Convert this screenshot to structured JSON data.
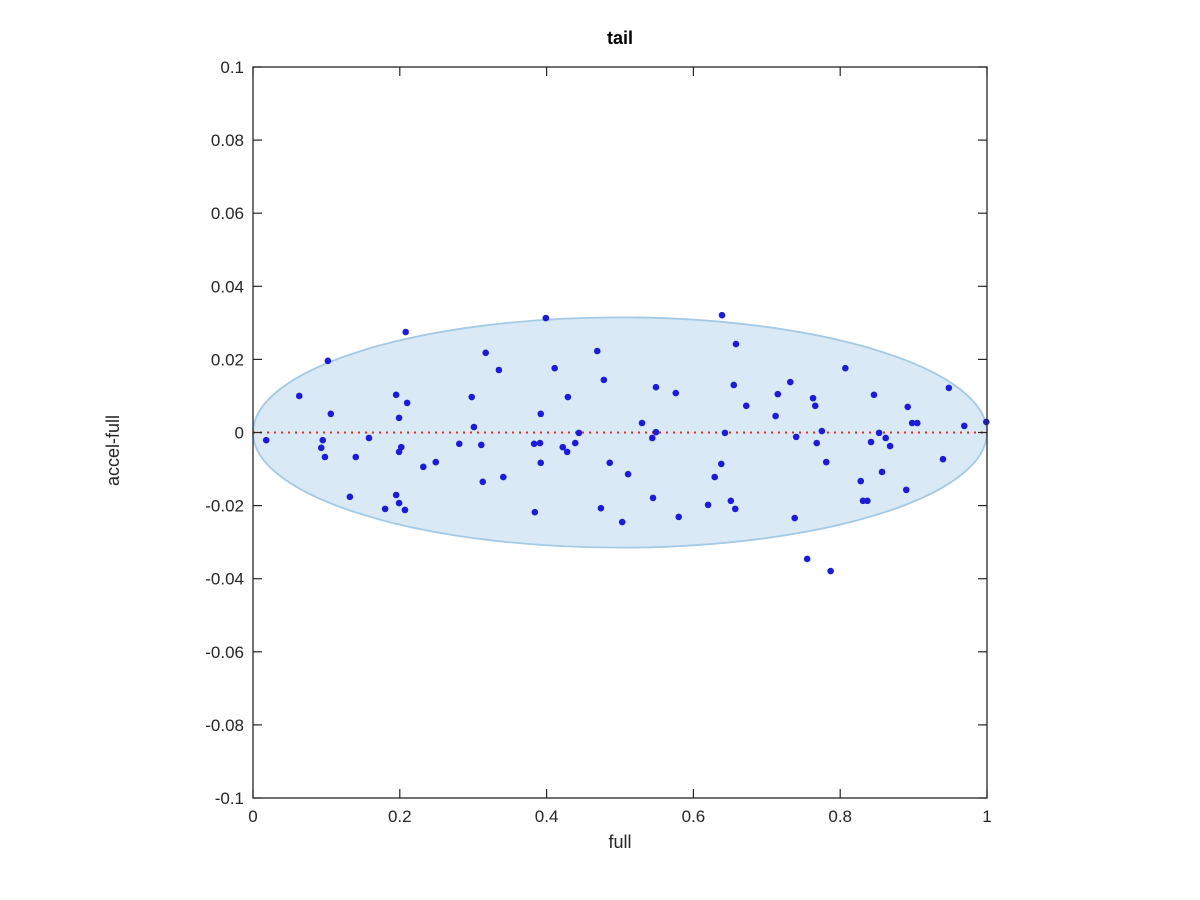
{
  "figure": {
    "window_background": "#ffffff",
    "axis_color": "#262626"
  },
  "chart_data": {
    "type": "scatter",
    "title": "tail",
    "xlabel": "full",
    "ylabel": "accel-full",
    "xlim": [
      0,
      1
    ],
    "ylim": [
      -0.1,
      0.1
    ],
    "grid": false,
    "legend": null,
    "xticks": {
      "values": [
        0,
        0.2,
        0.4,
        0.6,
        0.8,
        1
      ],
      "labels": [
        "0",
        "0.2",
        "0.4",
        "0.6",
        "0.8",
        "1"
      ]
    },
    "yticks": {
      "values": [
        -0.1,
        -0.08,
        -0.06,
        -0.04,
        -0.02,
        0,
        0.02,
        0.04,
        0.06,
        0.08,
        0.1
      ],
      "labels": [
        "-0.1",
        "-0.08",
        "-0.06",
        "-0.04",
        "-0.02",
        "0",
        "0.02",
        "0.04",
        "0.06",
        "0.08",
        "0.1"
      ]
    },
    "marker": {
      "shape": "point",
      "color": "#1b1bd8",
      "radius_px": 3.3
    },
    "ellipse": {
      "cx": 0.5,
      "cy": 0,
      "rx": 0.5,
      "ry": 0.0315,
      "fill": "#d9e9f5",
      "stroke": "#a5cae5"
    },
    "zero_line": {
      "y": 0,
      "style": "dotted",
      "color": "#e8291c"
    },
    "points": [
      [
        0.208,
        0.0275
      ],
      [
        0.102,
        0.0196
      ],
      [
        0.317,
        0.0218
      ],
      [
        0.335,
        0.0171
      ],
      [
        0.063,
        0.01
      ],
      [
        0.195,
        0.0103
      ],
      [
        0.21,
        0.0081
      ],
      [
        0.298,
        0.0097
      ],
      [
        0.106,
        0.0051
      ],
      [
        0.199,
        0.004
      ],
      [
        0.301,
        0.0015
      ],
      [
        0.158,
        -0.0015
      ],
      [
        0.399,
        0.0313
      ],
      [
        0.639,
        0.0321
      ],
      [
        0.658,
        0.0242
      ],
      [
        0.469,
        0.0223
      ],
      [
        0.411,
        0.0176
      ],
      [
        0.478,
        0.0144
      ],
      [
        0.549,
        0.0124
      ],
      [
        0.576,
        0.0108
      ],
      [
        0.655,
        0.013
      ],
      [
        0.672,
        0.0073
      ],
      [
        0.429,
        0.0097
      ],
      [
        0.392,
        0.0051
      ],
      [
        0.53,
        0.0026
      ],
      [
        0.444,
        -0.0001
      ],
      [
        0.549,
        0.0001
      ],
      [
        0.544,
        -0.0015
      ],
      [
        0.643,
        -0.0001
      ],
      [
        0.807,
        0.0176
      ],
      [
        0.732,
        0.0138
      ],
      [
        0.715,
        0.0105
      ],
      [
        0.763,
        0.0094
      ],
      [
        0.766,
        0.0073
      ],
      [
        0.846,
        0.0103
      ],
      [
        0.948,
        0.0122
      ],
      [
        0.892,
        0.007
      ],
      [
        0.712,
        0.0045
      ],
      [
        0.898,
        0.0026
      ],
      [
        0.905,
        0.0026
      ],
      [
        0.969,
        0.0018
      ],
      [
        0.999,
        0.0029
      ],
      [
        0.74,
        -0.0012
      ],
      [
        0.775,
        0.0004
      ],
      [
        0.853,
        -0.0001
      ],
      [
        0.862,
        -0.0015
      ],
      [
        0.018,
        -0.0021
      ],
      [
        0.095,
        -0.0021
      ],
      [
        0.093,
        -0.0042
      ],
      [
        0.098,
        -0.0067
      ],
      [
        0.14,
        -0.0067
      ],
      [
        0.202,
        -0.004
      ],
      [
        0.199,
        -0.0053
      ],
      [
        0.281,
        -0.0031
      ],
      [
        0.311,
        -0.0034
      ],
      [
        0.249,
        -0.0081
      ],
      [
        0.232,
        -0.0094
      ],
      [
        0.313,
        -0.0135
      ],
      [
        0.132,
        -0.0176
      ],
      [
        0.195,
        -0.0171
      ],
      [
        0.199,
        -0.0193
      ],
      [
        0.18,
        -0.0209
      ],
      [
        0.207,
        -0.0212
      ],
      [
        0.383,
        -0.0031
      ],
      [
        0.391,
        -0.0029
      ],
      [
        0.439,
        -0.0029
      ],
      [
        0.422,
        -0.004
      ],
      [
        0.428,
        -0.0053
      ],
      [
        0.392,
        -0.0083
      ],
      [
        0.486,
        -0.0083
      ],
      [
        0.511,
        -0.0114
      ],
      [
        0.341,
        -0.0122
      ],
      [
        0.638,
        -0.0086
      ],
      [
        0.629,
        -0.0122
      ],
      [
        0.545,
        -0.0179
      ],
      [
        0.651,
        -0.0187
      ],
      [
        0.657,
        -0.0209
      ],
      [
        0.474,
        -0.0207
      ],
      [
        0.384,
        -0.0218
      ],
      [
        0.503,
        -0.0245
      ],
      [
        0.58,
        -0.0231
      ],
      [
        0.62,
        -0.0198
      ],
      [
        0.768,
        -0.0029
      ],
      [
        0.842,
        -0.0026
      ],
      [
        0.868,
        -0.0037
      ],
      [
        0.781,
        -0.0081
      ],
      [
        0.94,
        -0.0073
      ],
      [
        0.857,
        -0.0108
      ],
      [
        0.828,
        -0.0133
      ],
      [
        0.89,
        -0.0157
      ],
      [
        0.831,
        -0.0187
      ],
      [
        0.837,
        -0.0187
      ],
      [
        0.738,
        -0.0234
      ],
      [
        0.755,
        -0.0346
      ],
      [
        0.787,
        -0.0379
      ]
    ]
  }
}
